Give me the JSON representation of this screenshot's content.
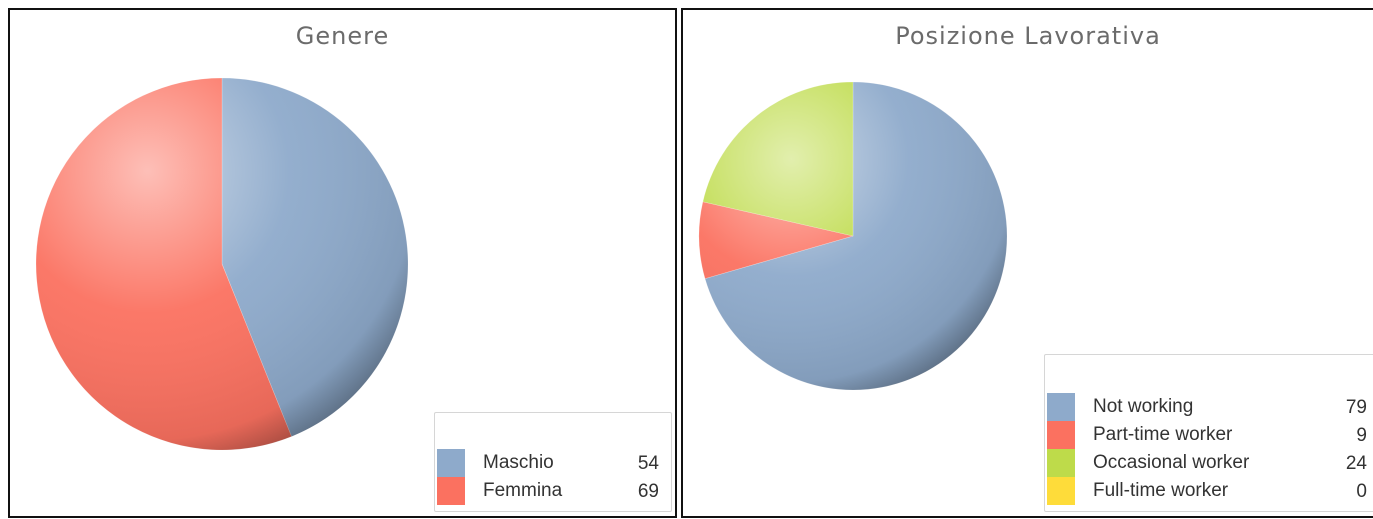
{
  "chart_data": [
    {
      "type": "pie",
      "title": "Genere",
      "slices": [
        {
          "label": "Maschio",
          "value": 54,
          "color": "#8eaacb"
        },
        {
          "label": "Femmina",
          "value": 69,
          "color": "#fb7160"
        }
      ]
    },
    {
      "type": "pie",
      "title": "Posizione Lavorativa",
      "slices": [
        {
          "label": "Not working",
          "value": 79,
          "color": "#8eaacb"
        },
        {
          "label": "Part-time worker",
          "value": 9,
          "color": "#fb7160"
        },
        {
          "label": "Occasional worker",
          "value": 24,
          "color": "#bedb4a"
        },
        {
          "label": "Full-time worker",
          "value": 0,
          "color": "#fedc3a"
        }
      ]
    }
  ]
}
